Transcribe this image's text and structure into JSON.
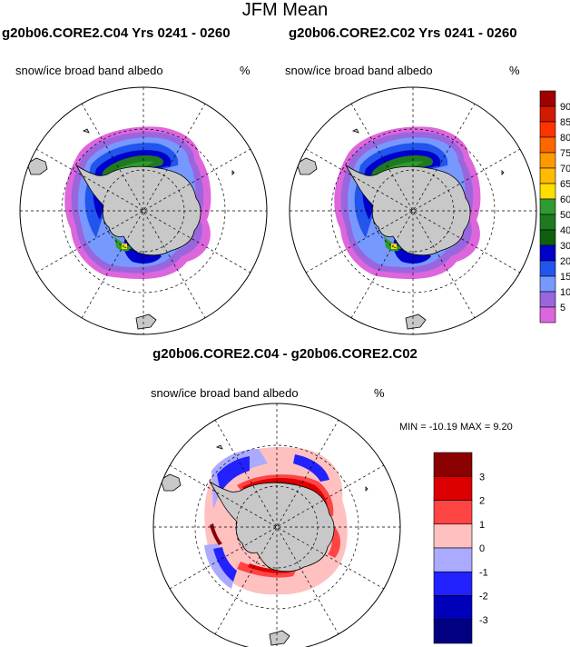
{
  "figure": {
    "title": "JFM Mean",
    "case_left": "g20b06.CORE2.C04  Yrs 0241 - 0260",
    "case_right": "g20b06.CORE2.C02  Yrs 0241 - 0260",
    "diff_title": "g20b06.CORE2.C04 - g20b06.CORE2.C02"
  },
  "panels": {
    "left": {
      "variable": "snow/ice broad band albedo",
      "units": "%"
    },
    "right": {
      "variable": "snow/ice broad band albedo",
      "units": "%"
    },
    "diff": {
      "variable": "snow/ice broad band albedo",
      "units": "%",
      "minmax": "MIN = -10.19 MAX =   9.20"
    }
  },
  "colorbar_main": {
    "levels": [
      "90",
      "85",
      "80",
      "75",
      "70",
      "65",
      "60",
      "50",
      "40",
      "30",
      "20",
      "15",
      "10",
      "5"
    ],
    "colors": [
      "#a00000",
      "#d21a00",
      "#ff3300",
      "#ff6600",
      "#ff9900",
      "#ffbb00",
      "#ffdd00",
      "#2e9b2e",
      "#1f7a1f",
      "#0f5f0f",
      "#0000cc",
      "#2255ee",
      "#7799ff",
      "#9966dd",
      "#dd66dd"
    ]
  },
  "colorbar_diff": {
    "levels": [
      "3",
      "2",
      "1",
      "0",
      "-1",
      "-2",
      "-3"
    ],
    "colors": [
      "#8b0000",
      "#dd0000",
      "#ff4444",
      "#ffc0c0",
      "#aaaaff",
      "#2222ff",
      "#0000bb",
      "#000080"
    ]
  },
  "map": {
    "land_color": "#c8c8c8",
    "projection": "south polar stereographic"
  }
}
